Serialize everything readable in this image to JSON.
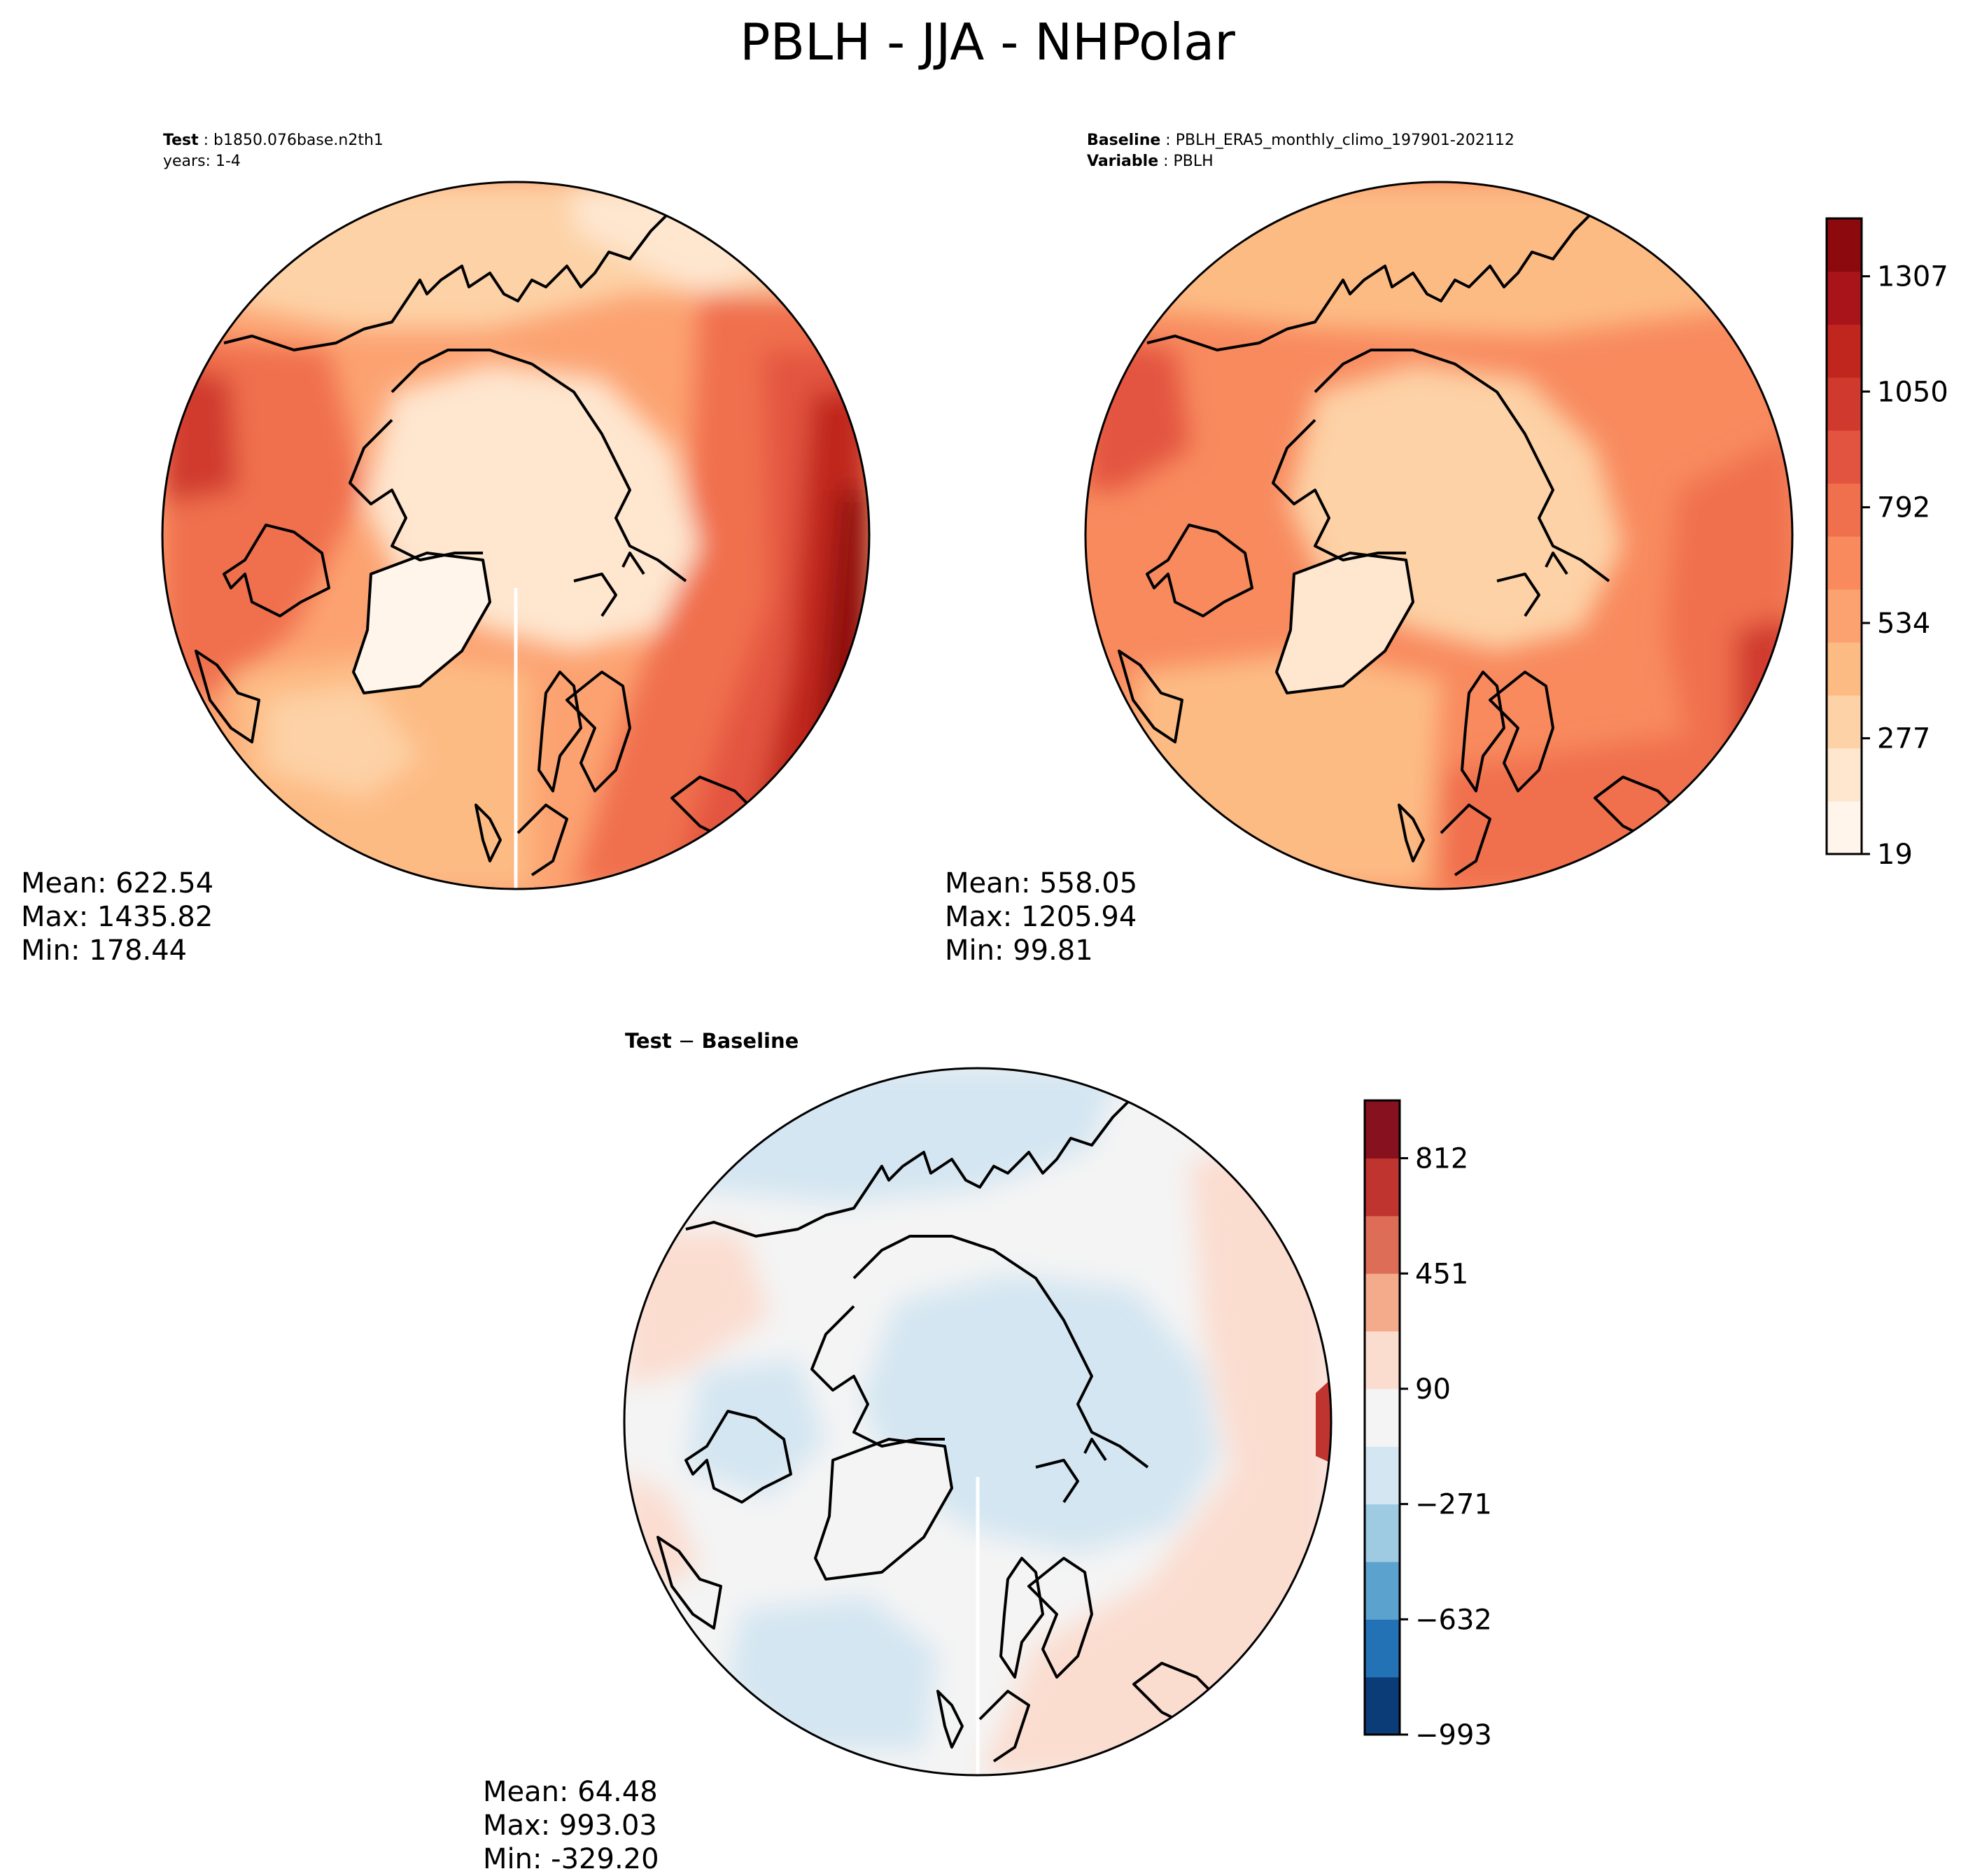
{
  "figure": {
    "title": "PBLH - JJA - NHPolar"
  },
  "panels": {
    "test": {
      "title_key": "Test",
      "title_value": "b1850.076base.n2th1",
      "subtitle": "years: 1-4",
      "stats": {
        "mean": "Mean: 622.54",
        "max": "Max: 1435.82",
        "min": "Min: 178.44"
      }
    },
    "baseline": {
      "title_key": "Baseline",
      "title_value": "PBLH_ERA5_monthly_climo_197901-202112",
      "var_key": "Variable",
      "var_value": "PBLH",
      "stats": {
        "mean": "Mean: 558.05",
        "max": "Max: 1205.94",
        "min": "Min: 99.81"
      }
    },
    "diff": {
      "title_a": "Test",
      "title_sep": "−",
      "title_b": "Baseline",
      "stats": {
        "mean": "Mean: 64.48",
        "max": "Max: 993.03",
        "min": "Min: -329.20"
      }
    }
  },
  "colorbars": {
    "main": {
      "colormap": "Reds",
      "ticks": [
        "19",
        "277",
        "534",
        "792",
        "1050",
        "1307"
      ],
      "tick_values": [
        19,
        277,
        534,
        792,
        1050,
        1307
      ],
      "range": [
        19,
        1436
      ],
      "colors": [
        "#fff5ea",
        "#fee6cf",
        "#fdd2a6",
        "#fdbb84",
        "#fca271",
        "#f88a5e",
        "#f0704e",
        "#e35440",
        "#d03a2e",
        "#c0261e",
        "#a81419",
        "#8c0a0d"
      ]
    },
    "diff": {
      "colormap": "RdBu_r",
      "ticks": [
        "−993",
        "−632",
        "−271",
        "90",
        "451",
        "812"
      ],
      "tick_values": [
        -993,
        -632,
        -271,
        90,
        451,
        812
      ],
      "range": [
        -993,
        993
      ],
      "colors": [
        "#0b3c78",
        "#2372b6",
        "#5ba2cf",
        "#9ecae2",
        "#d4e6f2",
        "#f4f4f4",
        "#fbddd0",
        "#f4ab8c",
        "#dd6d56",
        "#c03430",
        "#88111f"
      ]
    }
  },
  "map_colors": {
    "test_base": "#fca271",
    "baseline_base": "#fca271",
    "diff_base": "#f5f5f5",
    "coastline": "#000000"
  }
}
